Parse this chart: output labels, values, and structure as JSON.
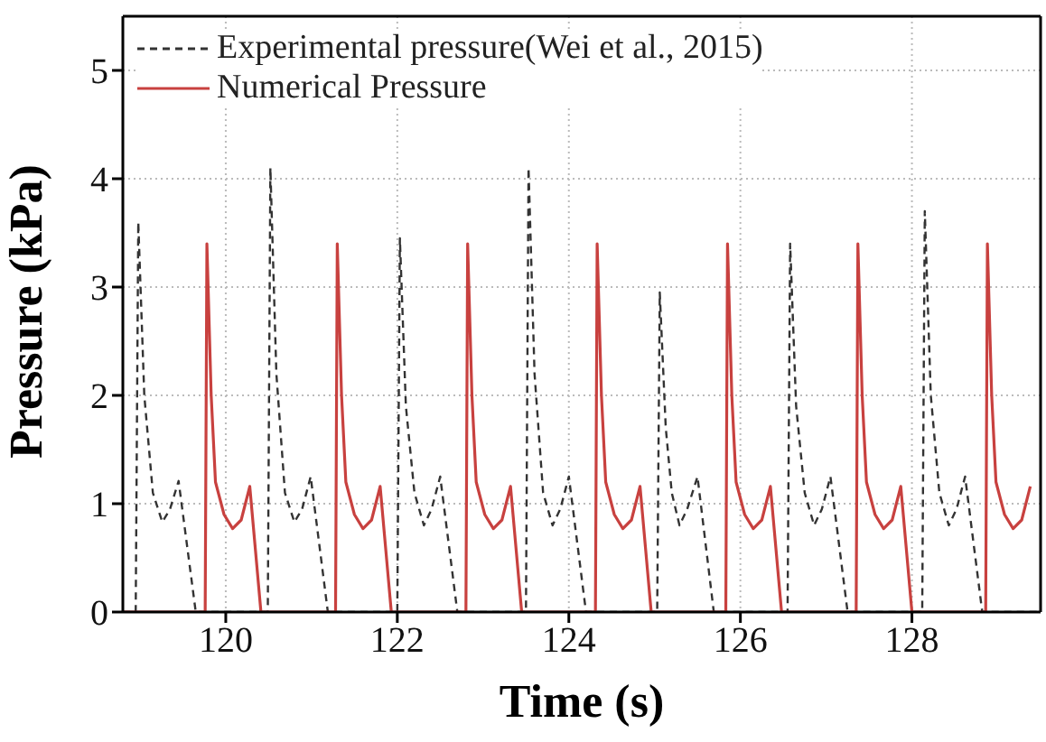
{
  "chart_data": {
    "type": "line",
    "xlabel": "Time (s)",
    "ylabel": "Pressure (kPa)",
    "xlim": [
      118.8,
      129.5
    ],
    "xticks": [
      120,
      122,
      124,
      126,
      128
    ],
    "ylim": [
      0,
      5.5
    ],
    "yticks": [
      0,
      1,
      2,
      3,
      4,
      5
    ],
    "grid": true,
    "legend": "top left",
    "marker": "none",
    "series": [
      {
        "name": "Experimental pressure(Wei et al., 2015)",
        "color": "#333333",
        "line_style": "dashed",
        "x": [
          118.8,
          118.95,
          118.98,
          119.05,
          119.15,
          119.26,
          119.35,
          119.45,
          119.65,
          120.49,
          120.52,
          120.59,
          120.69,
          120.8,
          120.89,
          120.99,
          121.19,
          122.0,
          122.03,
          122.1,
          122.2,
          122.31,
          122.4,
          122.5,
          122.7,
          123.5,
          123.53,
          123.6,
          123.7,
          123.81,
          123.9,
          124.0,
          124.2,
          125.03,
          125.06,
          125.13,
          125.2,
          125.29,
          125.38,
          125.5,
          125.69,
          126.55,
          126.58,
          126.65,
          126.75,
          126.86,
          126.95,
          127.05,
          127.25,
          128.12,
          128.15,
          128.22,
          128.32,
          128.43,
          128.52,
          128.62,
          128.82,
          129.5
        ],
        "values": [
          0,
          0,
          3.6,
          2.0,
          1.1,
          0.83,
          0.95,
          1.21,
          0,
          0,
          4.1,
          2.2,
          1.1,
          0.83,
          0.95,
          1.25,
          0,
          0,
          3.45,
          1.9,
          1.1,
          0.8,
          0.95,
          1.25,
          0,
          0,
          4.1,
          2.2,
          1.1,
          0.8,
          0.95,
          1.25,
          0,
          0,
          2.95,
          1.7,
          1.1,
          0.8,
          0.95,
          1.25,
          0,
          0,
          3.4,
          1.9,
          1.1,
          0.8,
          0.95,
          1.25,
          0,
          0,
          3.7,
          2.0,
          1.1,
          0.8,
          0.95,
          1.25,
          0,
          0
        ]
      },
      {
        "name": "Numerical Pressure",
        "color": "#c8413f",
        "line_style": "solid",
        "x": [
          118.8,
          119.76,
          119.78,
          119.83,
          119.88,
          119.98,
          120.08,
          120.18,
          120.28,
          120.41,
          121.28,
          121.3,
          121.35,
          121.4,
          121.5,
          121.6,
          121.7,
          121.8,
          121.93,
          122.8,
          122.82,
          122.87,
          122.92,
          123.02,
          123.12,
          123.22,
          123.32,
          123.45,
          124.31,
          124.33,
          124.38,
          124.43,
          124.53,
          124.63,
          124.73,
          124.83,
          124.96,
          125.83,
          125.85,
          125.9,
          125.95,
          126.05,
          126.15,
          126.25,
          126.35,
          126.48,
          127.35,
          127.37,
          127.42,
          127.47,
          127.57,
          127.67,
          127.77,
          127.87,
          128.0,
          128.86,
          128.88,
          128.93,
          128.98,
          129.08,
          129.18,
          129.28,
          129.38
        ],
        "values": [
          0,
          0,
          3.4,
          2.0,
          1.2,
          0.9,
          0.77,
          0.85,
          1.16,
          0,
          0,
          3.4,
          2.0,
          1.2,
          0.9,
          0.77,
          0.85,
          1.16,
          0,
          0,
          3.4,
          2.0,
          1.2,
          0.9,
          0.77,
          0.85,
          1.16,
          0,
          0,
          3.4,
          2.0,
          1.2,
          0.9,
          0.77,
          0.85,
          1.16,
          0,
          0,
          3.4,
          2.0,
          1.2,
          0.9,
          0.77,
          0.85,
          1.16,
          0,
          0,
          3.4,
          2.0,
          1.2,
          0.9,
          0.77,
          0.85,
          1.16,
          0,
          0,
          3.4,
          2.0,
          1.2,
          0.9,
          0.77,
          0.85,
          1.16
        ]
      }
    ]
  }
}
